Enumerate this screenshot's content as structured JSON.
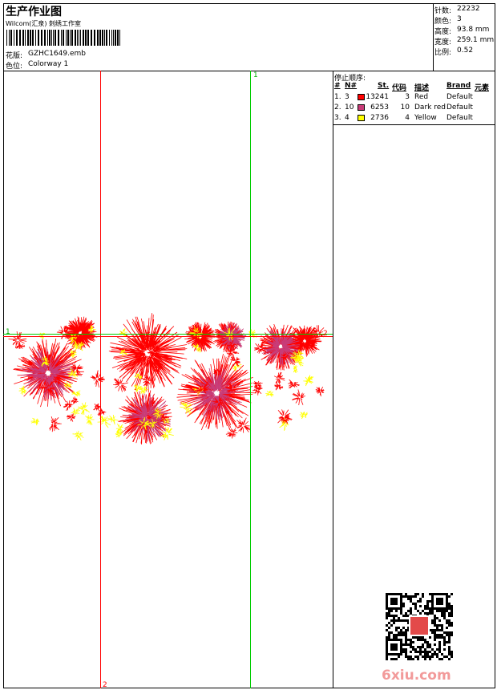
{
  "header": {
    "title": "生产作业图",
    "studio": "Wilcom(汇泉) 刺绣工作室",
    "design_label": "花版:",
    "design": "GZHC1649.emb",
    "colorway_label": "色位:",
    "colorway": "Colorway 1"
  },
  "info": [
    {
      "label": "针数:",
      "value": "22232"
    },
    {
      "label": "颜色:",
      "value": "3"
    },
    {
      "label": "高度:",
      "value": "93.8 mm"
    },
    {
      "label": "宽度:",
      "value": "259.1 mm"
    },
    {
      "label": "比例:",
      "value": "0.52"
    }
  ],
  "stop_sequence": {
    "title": "停止顺序:",
    "columns": [
      "#",
      "N#",
      "St.",
      "代码",
      "描述",
      "Brand",
      "元素"
    ],
    "rows": [
      {
        "index": "1.",
        "needle": "3",
        "color": "#ff0000",
        "stitches": "13241",
        "code": "3",
        "description": "Red",
        "brand": "Default"
      },
      {
        "index": "2.",
        "needle": "10",
        "color": "#c83c78",
        "stitches": "6253",
        "code": "10",
        "description": "Dark red",
        "brand": "Default"
      },
      {
        "index": "3.",
        "needle": "4",
        "color": "#ffff00",
        "stitches": "2736",
        "code": "4",
        "description": "Yellow",
        "brand": "Default"
      }
    ]
  },
  "guides": {
    "vertical_green": "1",
    "vertical_red": "2",
    "horizontal_green": "1",
    "horizontal_red": "2"
  },
  "watermark": "6xiu.com"
}
